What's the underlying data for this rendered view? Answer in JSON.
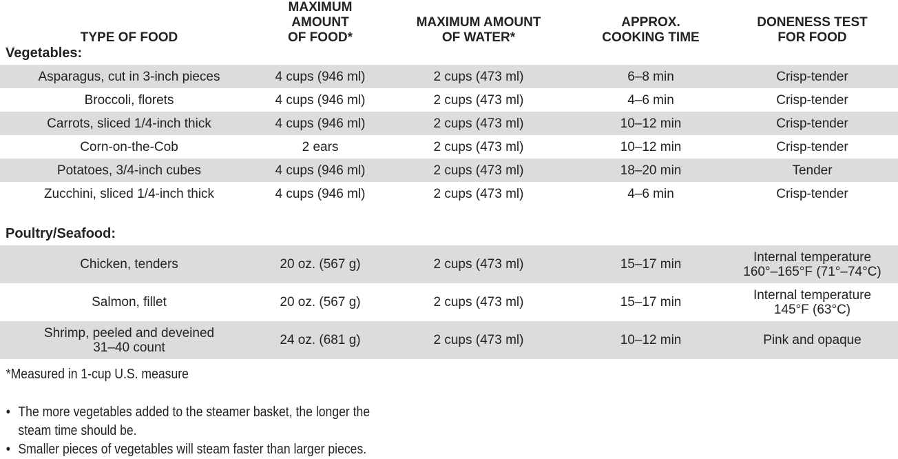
{
  "colors": {
    "stripe": "#dcdcdc",
    "text": "#232323"
  },
  "table": {
    "columns": [
      "TYPE OF FOOD",
      "MAXIMUM AMOUNT\nOF FOOD*",
      "MAXIMUM AMOUNT\nOF WATER*",
      "APPROX.\nCOOKING TIME",
      "DONENESS TEST\nFOR FOOD"
    ],
    "sections": [
      {
        "label": "Vegetables:",
        "rows": [
          {
            "cells": [
              "Asparagus, cut in 3-inch pieces",
              "4 cups (946 ml)",
              "2 cups (473 ml)",
              "6–8 min",
              "Crisp-tender"
            ]
          },
          {
            "cells": [
              "Broccoli, florets",
              "4 cups (946 ml)",
              "2 cups (473 ml)",
              "4–6 min",
              "Crisp-tender"
            ]
          },
          {
            "cells": [
              "Carrots, sliced 1/4-inch thick",
              "4 cups (946 ml)",
              "2 cups (473 ml)",
              "10–12 min",
              "Crisp-tender"
            ]
          },
          {
            "cells": [
              "Corn-on-the-Cob",
              "2 ears",
              "2 cups (473 ml)",
              "10–12 min",
              "Crisp-tender"
            ]
          },
          {
            "cells": [
              "Potatoes, 3/4-inch cubes",
              "4 cups (946 ml)",
              "2 cups (473 ml)",
              "18–20 min",
              "Tender"
            ]
          },
          {
            "cells": [
              "Zucchini, sliced 1/4-inch thick",
              "4 cups (946 ml)",
              "2 cups (473 ml)",
              "4–6 min",
              "Crisp-tender"
            ]
          }
        ]
      },
      {
        "label": "Poultry/Seafood:",
        "rows": [
          {
            "cells": [
              "Chicken, tenders",
              "20 oz. (567 g)",
              "2 cups (473 ml)",
              "15–17 min",
              "Internal temperature\n160°–165°F (71°–74°C)"
            ]
          },
          {
            "cells": [
              "Salmon, fillet",
              "20 oz. (567 g)",
              "2 cups (473 ml)",
              "15–17 min",
              "Internal temperature\n145°F (63°C)"
            ]
          },
          {
            "cells": [
              "Shrimp, peeled and deveined\n31–40 count",
              "24 oz. (681 g)",
              "2 cups (473 ml)",
              "10–12 min",
              "Pink and opaque"
            ]
          }
        ]
      }
    ]
  },
  "footer": {
    "footnote": "*Measured in 1-cup U.S. measure",
    "bullet_glyph": "•",
    "bullets": [
      "The more vegetables added to the steamer basket, the longer the\nsteam time should be.",
      "Smaller pieces of vegetables will steam faster than larger pieces."
    ]
  }
}
